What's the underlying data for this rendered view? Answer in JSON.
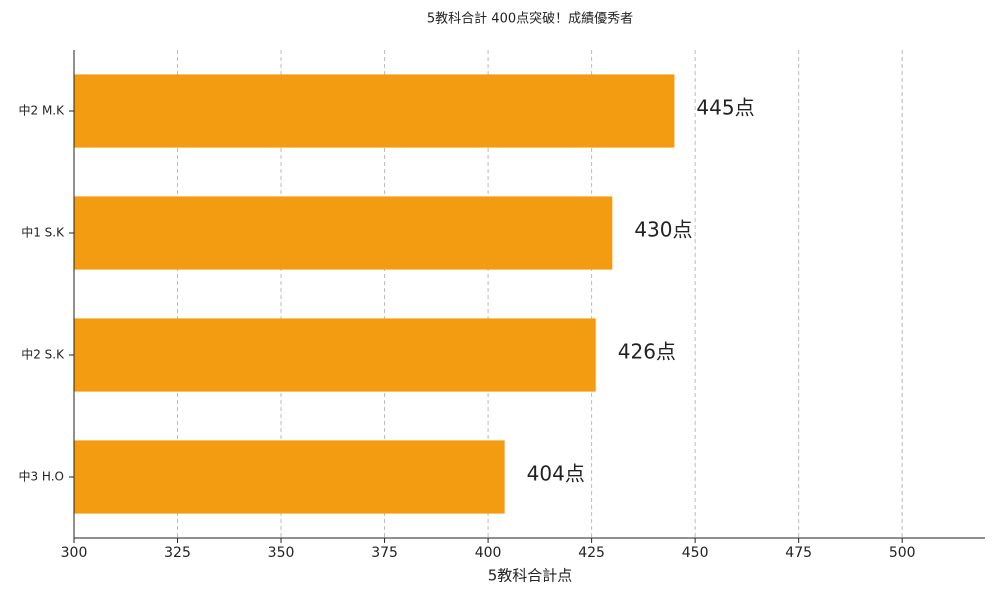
{
  "chart_data": {
    "type": "bar",
    "orientation": "horizontal",
    "title": "5教科合計 400点突破！成績優秀者",
    "x_label": "5教科合計点",
    "categories": [
      "中2 M.K",
      "中1 S.K",
      "中2 S.K",
      "中3 H.O"
    ],
    "values": [
      445,
      430,
      426,
      404
    ],
    "value_labels": [
      "445点",
      "430点",
      "426点",
      "404点"
    ],
    "color": "#f39c12",
    "label_color": "#d35400",
    "xlim": [
      300,
      520
    ],
    "xticks": [
      300,
      325,
      350,
      375,
      400,
      425,
      450,
      475,
      500
    ],
    "grid": true
  }
}
